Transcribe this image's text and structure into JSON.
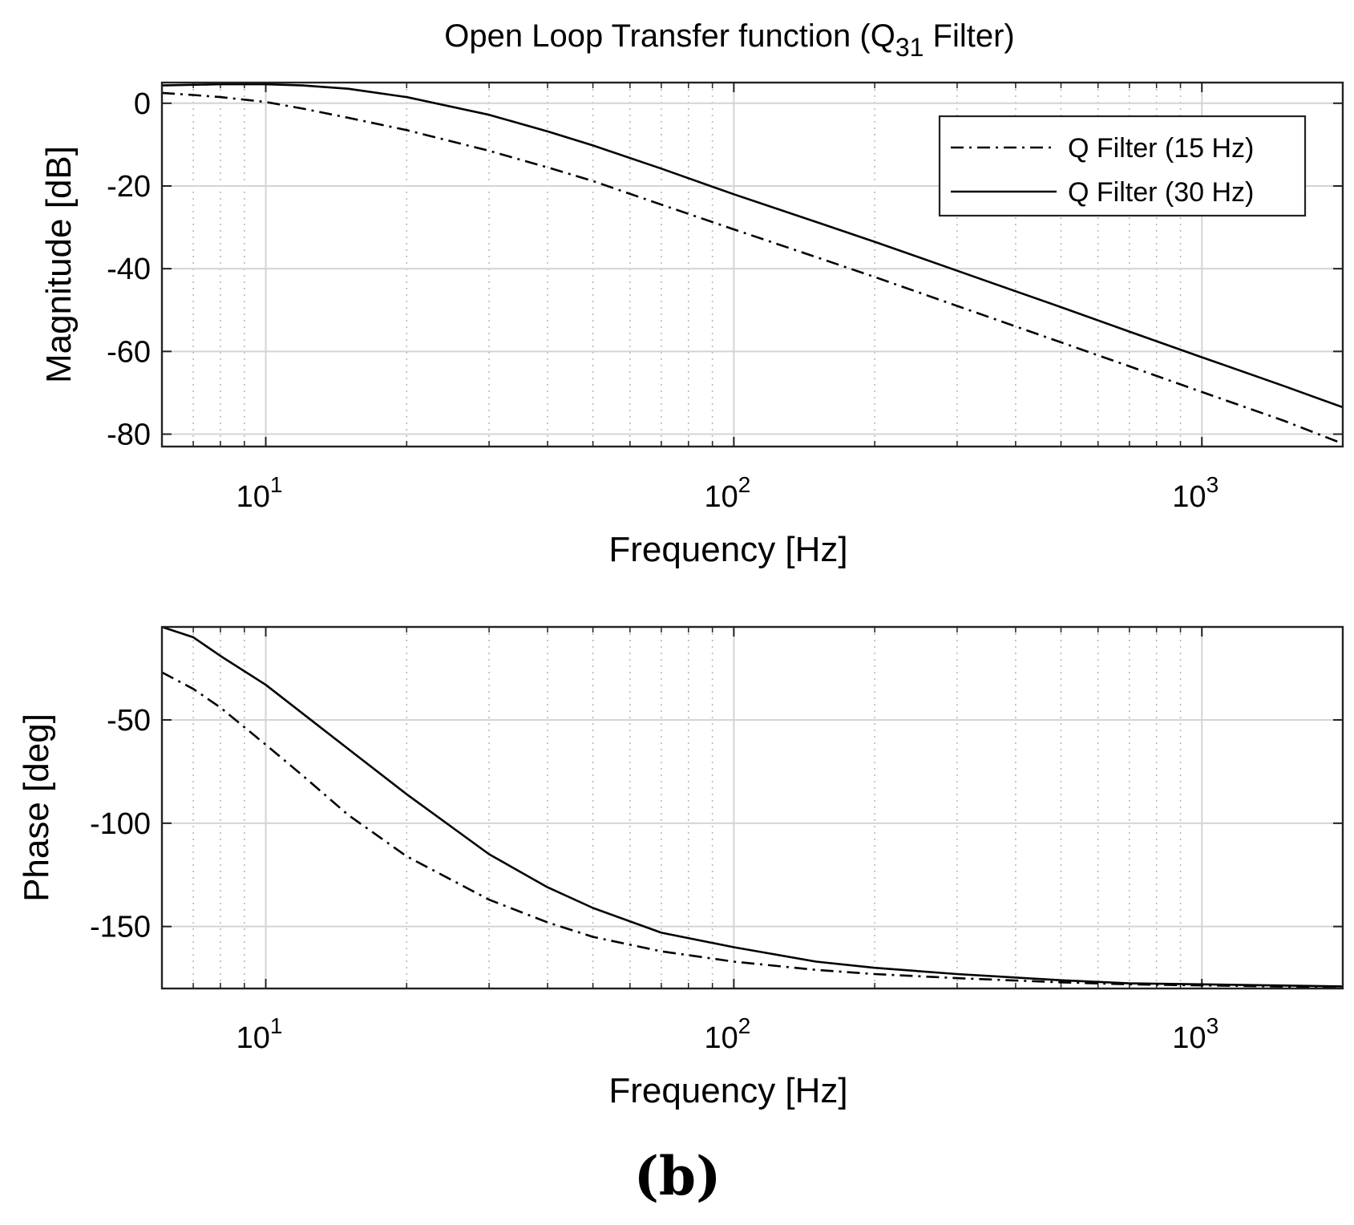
{
  "title": {
    "prefix": "Open Loop Transfer function (Q",
    "subscript": "31",
    "suffix": " Filter)"
  },
  "caption": "(b)",
  "chart_data": [
    {
      "type": "line",
      "xscale": "log",
      "xlim": [
        6,
        2000
      ],
      "ylim": [
        -83,
        5
      ],
      "xlabel": "Frequency [Hz]",
      "ylabel": "Magnitude [dB]",
      "xticks": [
        {
          "base": "10",
          "exp": "1",
          "value": 10
        },
        {
          "base": "10",
          "exp": "2",
          "value": 100
        },
        {
          "base": "10",
          "exp": "3",
          "value": 1000
        }
      ],
      "yticks": [
        0,
        -20,
        -40,
        -60,
        -80
      ],
      "grid": true,
      "legend": {
        "position": "top-right",
        "entries": [
          "Q Filter (15 Hz)",
          "Q Filter (30 Hz)"
        ]
      },
      "series": [
        {
          "name": "Q Filter (15 Hz)",
          "dash": "dashdot",
          "x": [
            6,
            7,
            8,
            10,
            12,
            15,
            20,
            30,
            40,
            50,
            70,
            100,
            150,
            200,
            300,
            500,
            700,
            1000,
            1500,
            2000
          ],
          "y": [
            2.5,
            2.0,
            1.5,
            0.3,
            -1.3,
            -3.5,
            -6.5,
            -11.5,
            -15.5,
            -18.8,
            -24.5,
            -30.5,
            -37.2,
            -42.0,
            -49.0,
            -57.8,
            -63.6,
            -69.8,
            -76.8,
            -82.3
          ]
        },
        {
          "name": "Q Filter (30 Hz)",
          "dash": "solid",
          "x": [
            6,
            8,
            10,
            12,
            15,
            20,
            30,
            40,
            50,
            70,
            100,
            150,
            200,
            300,
            500,
            700,
            1000,
            1500,
            2000
          ],
          "y": [
            4.3,
            4.6,
            4.6,
            4.3,
            3.5,
            1.5,
            -2.8,
            -6.8,
            -10.2,
            -15.8,
            -22.0,
            -28.7,
            -33.5,
            -40.5,
            -49.3,
            -55.2,
            -61.4,
            -68.4,
            -73.5
          ]
        }
      ]
    },
    {
      "type": "line",
      "xscale": "log",
      "xlim": [
        6,
        2000
      ],
      "ylim": [
        -180,
        -5
      ],
      "xlabel": "Frequency [Hz]",
      "ylabel": "Phase [deg]",
      "xticks": [
        {
          "base": "10",
          "exp": "1",
          "value": 10
        },
        {
          "base": "10",
          "exp": "2",
          "value": 100
        },
        {
          "base": "10",
          "exp": "3",
          "value": 1000
        }
      ],
      "yticks": [
        -50,
        -100,
        -150
      ],
      "grid": true,
      "series": [
        {
          "name": "Q Filter (15 Hz)",
          "dash": "dashdot",
          "x": [
            6,
            7,
            8,
            10,
            12,
            15,
            20,
            30,
            40,
            50,
            70,
            100,
            150,
            200,
            300,
            500,
            700,
            1000,
            2000
          ],
          "y": [
            -27,
            -35,
            -44,
            -62,
            -77,
            -96,
            -116,
            -137,
            -148,
            -155,
            -162,
            -167,
            -171,
            -173,
            -175,
            -177,
            -178,
            -178.5,
            -179.5
          ]
        },
        {
          "name": "Q Filter (30 Hz)",
          "dash": "solid",
          "x": [
            6,
            7,
            8,
            10,
            12,
            15,
            20,
            30,
            40,
            50,
            70,
            100,
            150,
            200,
            300,
            500,
            700,
            1000,
            2000
          ],
          "y": [
            -5,
            -10,
            -19,
            -33,
            -47,
            -64,
            -86,
            -115,
            -131,
            -141,
            -153,
            -160,
            -167,
            -170,
            -173,
            -176,
            -177.5,
            -178,
            -179
          ]
        }
      ]
    }
  ]
}
